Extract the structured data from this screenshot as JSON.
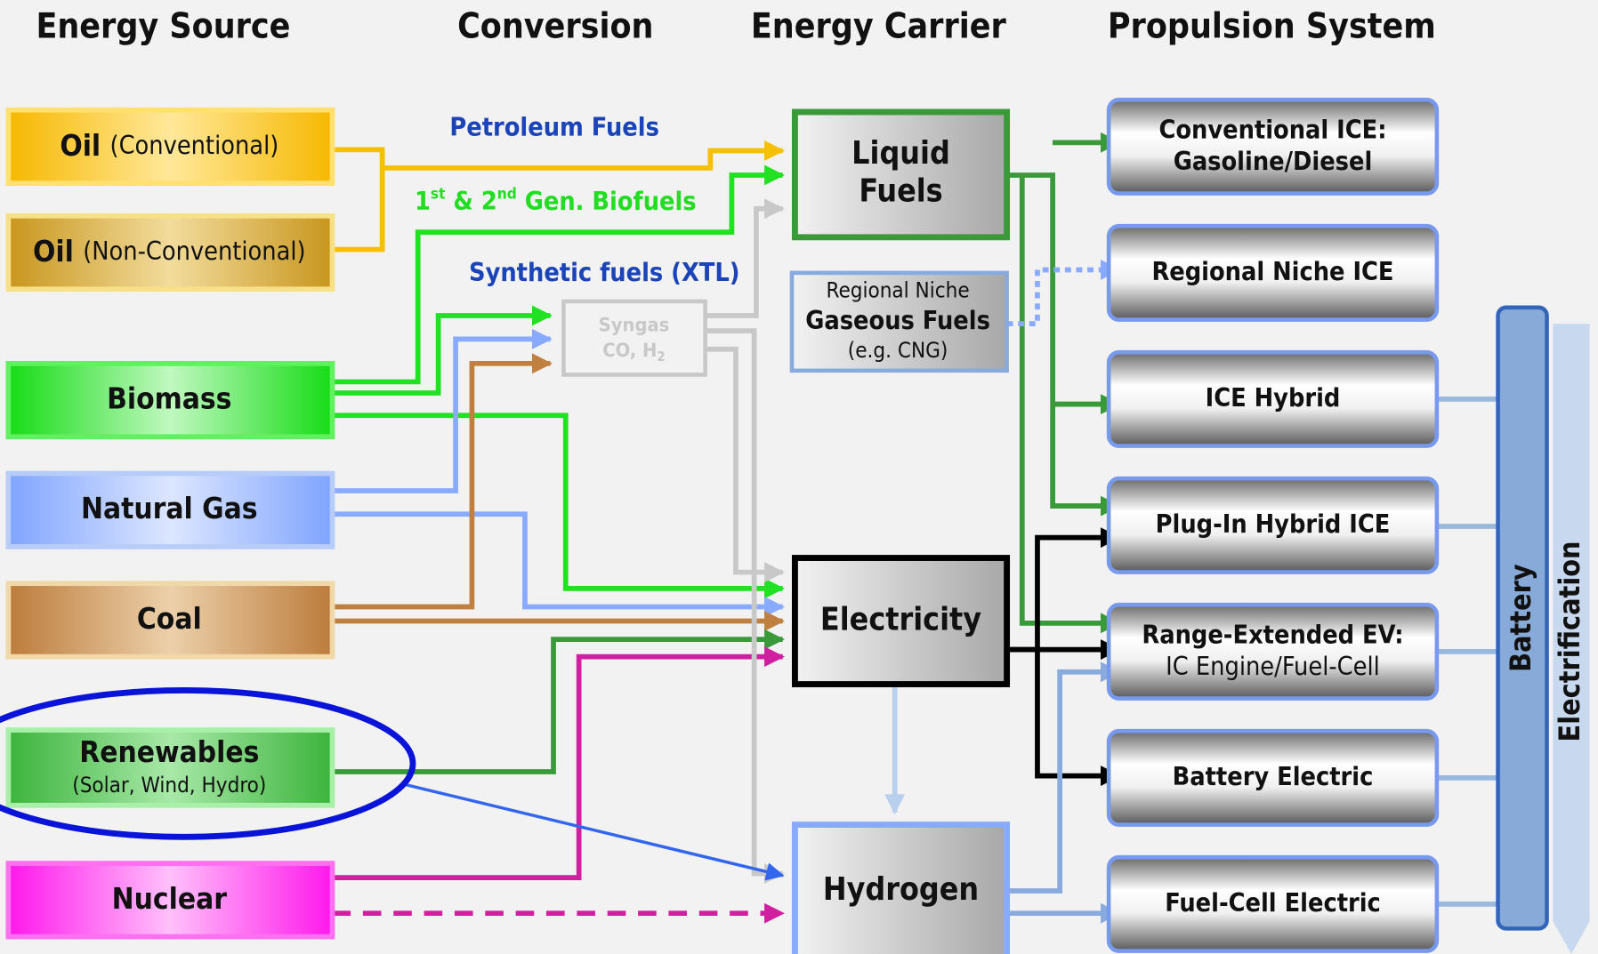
{
  "headers": [
    "Energy Source",
    "Conversion",
    "Energy Carrier",
    "Propulsion System"
  ],
  "sources": [
    {
      "label": "Oil",
      "sub": "(Conventional)"
    },
    {
      "label": "Oil",
      "sub": "(Non-Conventional)"
    },
    {
      "label": "Biomass"
    },
    {
      "label": "Natural Gas"
    },
    {
      "label": "Coal"
    },
    {
      "label": "Renewables",
      "sub": "(Solar, Wind, Hydro)"
    },
    {
      "label": "Nuclear"
    }
  ],
  "conversion": {
    "petroleum": "Petroleum Fuels",
    "biofuels": [
      "1",
      "st",
      " & 2",
      "nd",
      " Gen. Biofuels"
    ],
    "synthetic": "Synthetic fuels (XTL)",
    "syngas": [
      "Syngas",
      "CO, H",
      "2"
    ]
  },
  "carriers": {
    "liquid": [
      "Liquid",
      "Fuels"
    ],
    "gaseous": [
      "Regional Niche",
      "Gaseous Fuels",
      "(e.g. CNG)"
    ],
    "electricity": "Electricity",
    "hydrogen": "Hydrogen"
  },
  "propulsion": [
    [
      "Conventional ICE:",
      "Gasoline/Diesel"
    ],
    [
      "Regional Niche ICE"
    ],
    [
      "ICE Hybrid"
    ],
    [
      "Plug-In Hybrid ICE"
    ],
    [
      "Range-Extended EV:",
      "IC Engine/Fuel-Cell"
    ],
    [
      "Battery Electric"
    ],
    [
      "Fuel-Cell Electric"
    ]
  ],
  "battery": "Battery",
  "electrification": "Electrification"
}
